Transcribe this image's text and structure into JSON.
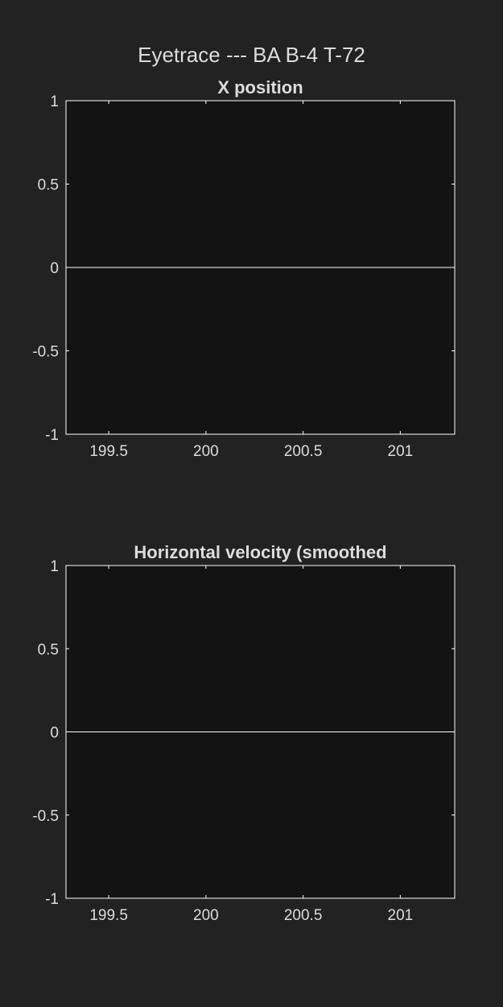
{
  "figure": {
    "title": "Eyetrace --- BA B-4 T-72",
    "background_color": "#222222",
    "axes_background_color": "#131313",
    "axes_color": "#ffffff",
    "text_color": "#dcdcdc"
  },
  "chart_data": [
    {
      "type": "line",
      "title": "X position",
      "xlabel": "",
      "ylabel": "",
      "xlim": [
        199.28,
        201.28
      ],
      "ylim": [
        -1,
        1
      ],
      "x_ticks": [
        199.5,
        200,
        200.5,
        201
      ],
      "x_tick_labels": [
        "199.5",
        "200",
        "200.5",
        "201"
      ],
      "y_ticks": [
        1,
        0.5,
        0,
        -0.5,
        -1
      ],
      "y_tick_labels": [
        "1",
        "0.5",
        "0",
        "-0.5",
        "-1"
      ],
      "grid": false,
      "legend": "none",
      "series": [
        {
          "x": [
            199.28,
            201.28
          ],
          "y": [
            0,
            0
          ],
          "color": "#ffffff"
        }
      ]
    },
    {
      "type": "line",
      "title": "Horizontal velocity (smoothed",
      "xlabel": "",
      "ylabel": "",
      "xlim": [
        199.28,
        201.28
      ],
      "ylim": [
        -1,
        1
      ],
      "x_ticks": [
        199.5,
        200,
        200.5,
        201
      ],
      "x_tick_labels": [
        "199.5",
        "200",
        "200.5",
        "201"
      ],
      "y_ticks": [
        1,
        0.5,
        0,
        -0.5,
        -1
      ],
      "y_tick_labels": [
        "1",
        "0.5",
        "0",
        "-0.5",
        "-1"
      ],
      "grid": false,
      "legend": "none",
      "series": [
        {
          "x": [
            199.28,
            201.28
          ],
          "y": [
            0,
            0
          ],
          "color": "#ffffff"
        }
      ]
    }
  ]
}
